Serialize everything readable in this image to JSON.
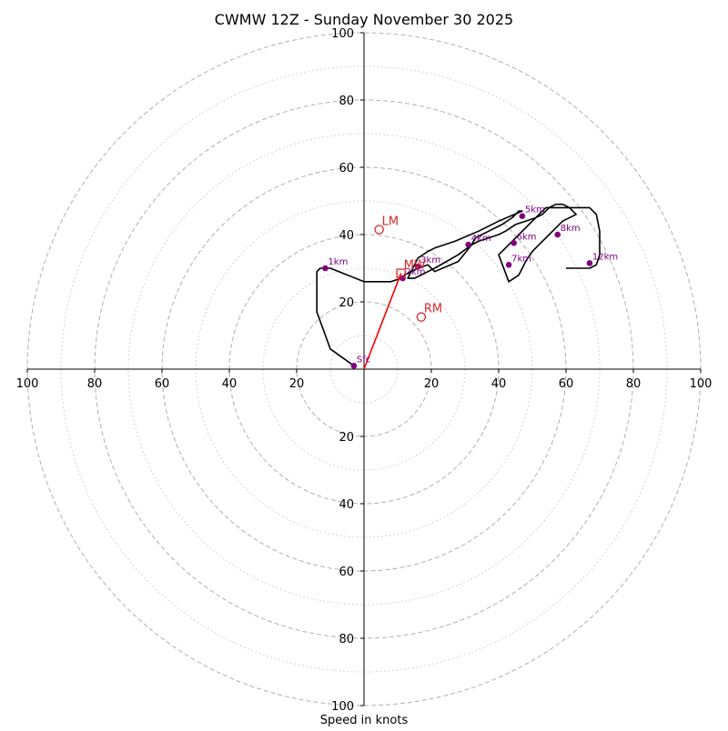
{
  "chart_data": {
    "type": "hodograph",
    "title": "CWMW 12Z - Sunday November 30 2025",
    "xlabel": "Speed in knots",
    "ylabel": "",
    "xlim": [
      -100,
      100
    ],
    "ylim": [
      -100,
      100
    ],
    "ring_speeds_dashed": [
      20,
      40,
      60,
      80,
      100
    ],
    "ring_speeds_dotted": [
      10,
      30,
      50,
      70,
      90
    ],
    "tick_labels_x": [
      "100",
      "80",
      "60",
      "40",
      "20",
      "20",
      "40",
      "60",
      "80",
      "100"
    ],
    "tick_values_x": [
      -100,
      -80,
      -60,
      -40,
      -20,
      20,
      40,
      60,
      80,
      100
    ],
    "tick_labels_y": [
      "100",
      "80",
      "60",
      "40",
      "20",
      "20",
      "40",
      "60",
      "80",
      "100"
    ],
    "tick_values_y": [
      100,
      80,
      60,
      40,
      20,
      -20,
      -40,
      -60,
      -80,
      -100
    ],
    "colors": {
      "trace": "#000000",
      "levels": "#800080",
      "motion": "#d62728",
      "storm_vector": "#ff0000",
      "grid": "#b0b0b0",
      "axis": "#000000"
    },
    "trace": {
      "name": "",
      "u": [
        -3,
        -10,
        -14,
        -14,
        -14,
        -13,
        -10,
        0,
        5,
        8,
        11,
        12,
        12,
        16,
        19,
        21,
        28,
        32,
        33,
        37,
        41,
        44,
        46,
        47,
        40,
        34,
        27,
        21,
        19,
        16,
        15,
        14,
        13,
        13,
        15,
        17,
        19,
        21,
        28,
        32,
        34,
        40,
        42,
        45,
        48,
        51,
        53,
        54,
        55,
        57,
        59,
        61,
        62,
        63,
        59,
        57,
        55,
        52,
        50,
        48,
        47,
        46,
        43,
        40,
        44,
        46,
        48,
        50,
        52,
        54,
        56,
        59,
        62,
        65,
        67,
        69,
        70,
        70,
        69,
        67,
        66,
        64,
        62,
        60
      ],
      "v": [
        1,
        6,
        17,
        24,
        29,
        30,
        30,
        26,
        26,
        26,
        27,
        27,
        28,
        30,
        31,
        29,
        32,
        37,
        39,
        41,
        43,
        45,
        47,
        47,
        44,
        41,
        38,
        36,
        35,
        33,
        31,
        29,
        27,
        27,
        27,
        28,
        29,
        30,
        34,
        37,
        38,
        40,
        41,
        43,
        44,
        45,
        46,
        47,
        48,
        49,
        49,
        48,
        47,
        46,
        44,
        42,
        40,
        37,
        35,
        32,
        30,
        28,
        26,
        34,
        38,
        40,
        42,
        44,
        46,
        48,
        48,
        48,
        48,
        48,
        48,
        46,
        41,
        34,
        31,
        30,
        30,
        30,
        30,
        30
      ]
    },
    "levels": [
      {
        "label": "Sfc",
        "u": -3,
        "v": 1
      },
      {
        "label": "1km",
        "u": -11.5,
        "v": 30
      },
      {
        "label": "2km",
        "u": 11.5,
        "v": 27
      },
      {
        "label": "3km",
        "u": 16,
        "v": 30.5
      },
      {
        "label": "4km",
        "u": 31,
        "v": 37
      },
      {
        "label": "5km",
        "u": 47,
        "v": 45.5
      },
      {
        "label": "6km",
        "u": 44.5,
        "v": 37.5
      },
      {
        "label": "7km",
        "u": 43,
        "v": 31
      },
      {
        "label": "8km",
        "u": 57.5,
        "v": 40
      },
      {
        "label": "12km",
        "u": 67,
        "v": 31.5
      }
    ],
    "storm_motion": [
      {
        "label": "LM",
        "u": 4.5,
        "v": 41.5,
        "marker": "circle"
      },
      {
        "label": "RM",
        "u": 17,
        "v": 15.5,
        "marker": "circle"
      },
      {
        "label": "MW",
        "u": 11,
        "v": 28.5,
        "marker": "square"
      }
    ],
    "storm_vector": {
      "u0": 0,
      "v0": 0,
      "u1": 11,
      "v1": 28.5
    }
  }
}
